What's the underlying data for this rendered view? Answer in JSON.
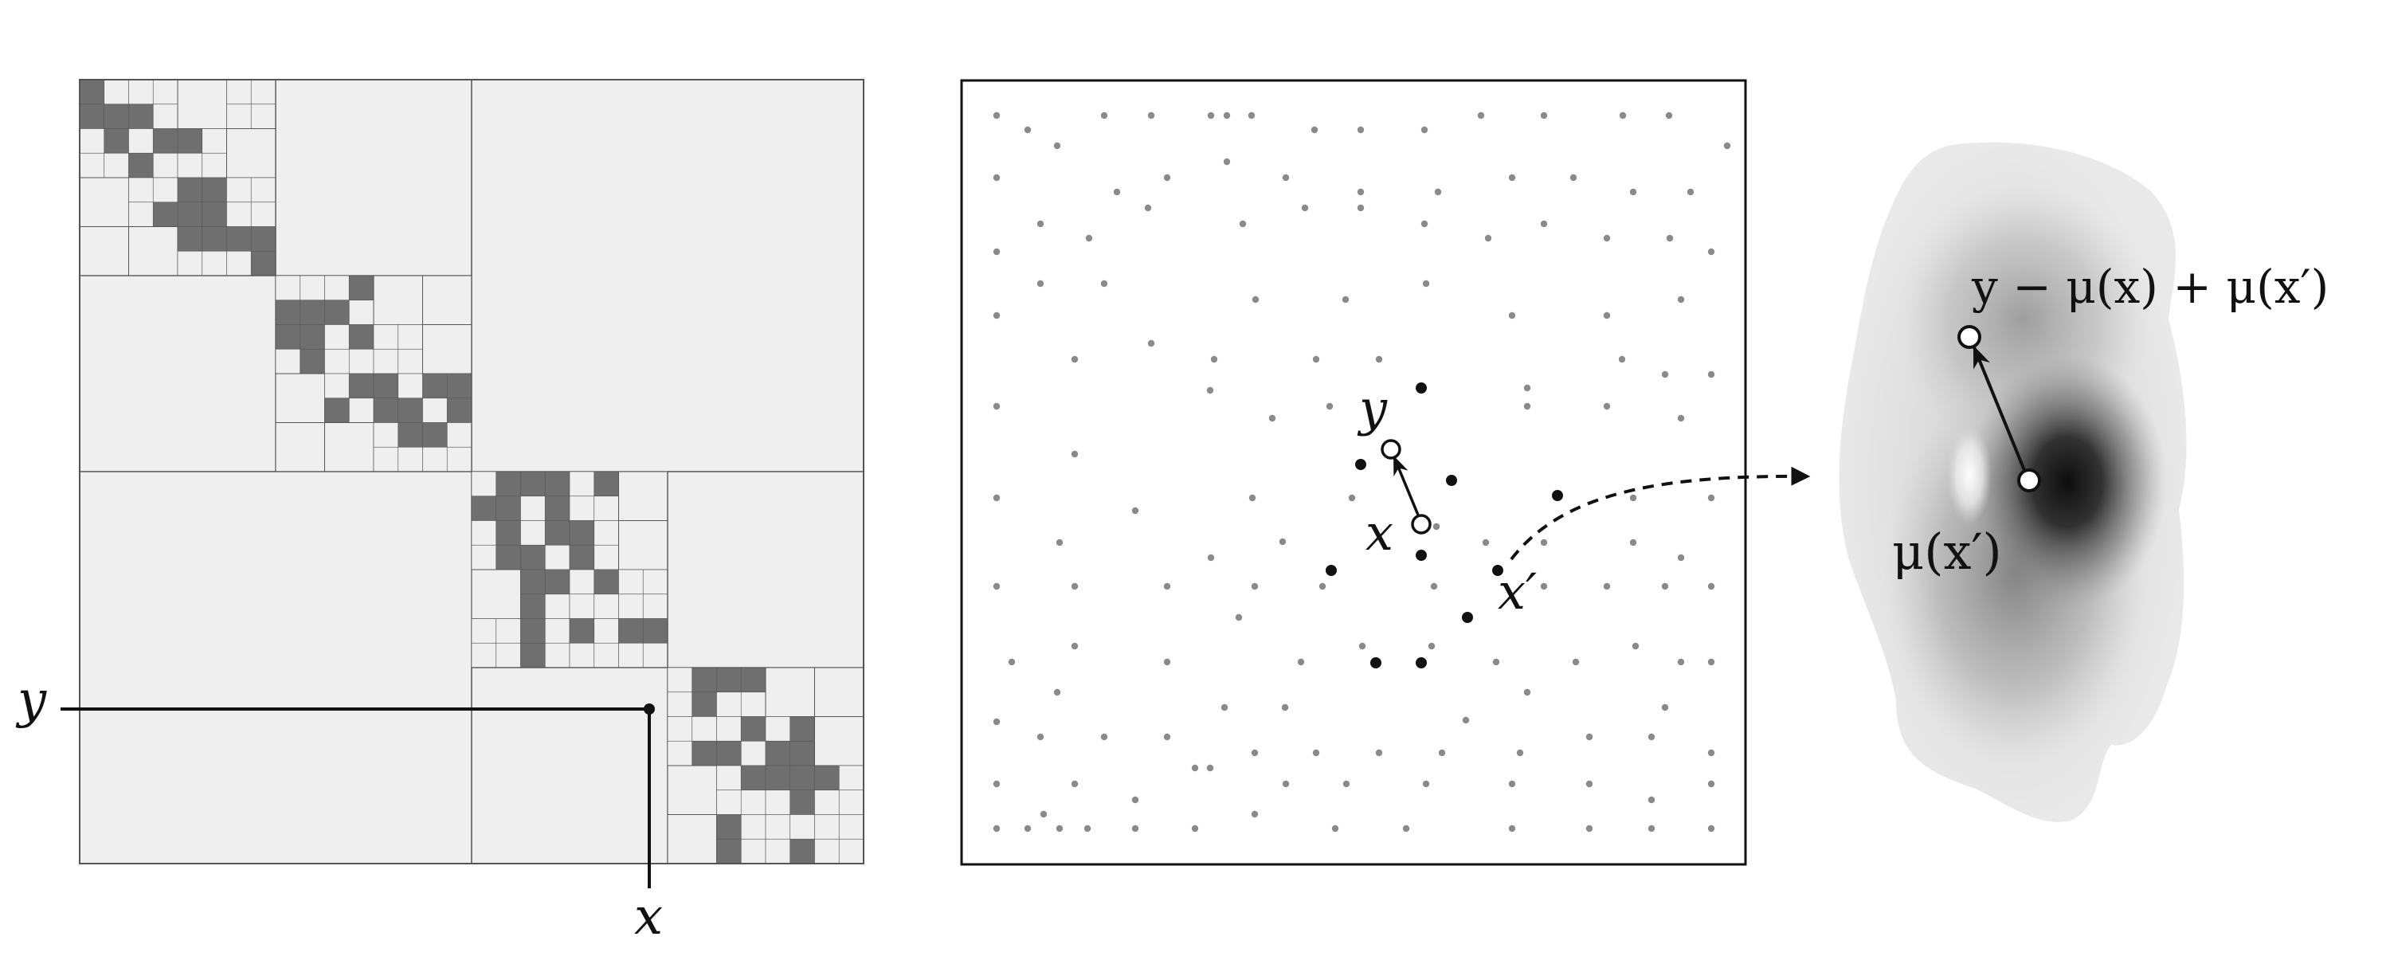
{
  "colors": {
    "cell_fill": "#efefef",
    "cell_dense": "#6f6f6f",
    "grid_line": "#555555",
    "frame": "#111111",
    "point_grey": "#8a8a8a",
    "point_black": "#111111",
    "density_light": "#ededed",
    "density_dark": "#111111"
  },
  "left_panel": {
    "label_y": "y",
    "label_x": "x"
  },
  "middle_panel": {
    "label_y": "y",
    "label_x": "x",
    "label_x_prime": "x′"
  },
  "right_panel": {
    "label_top": "y − μ(x) + μ(x′)",
    "label_bottom": "μ(x′)"
  }
}
